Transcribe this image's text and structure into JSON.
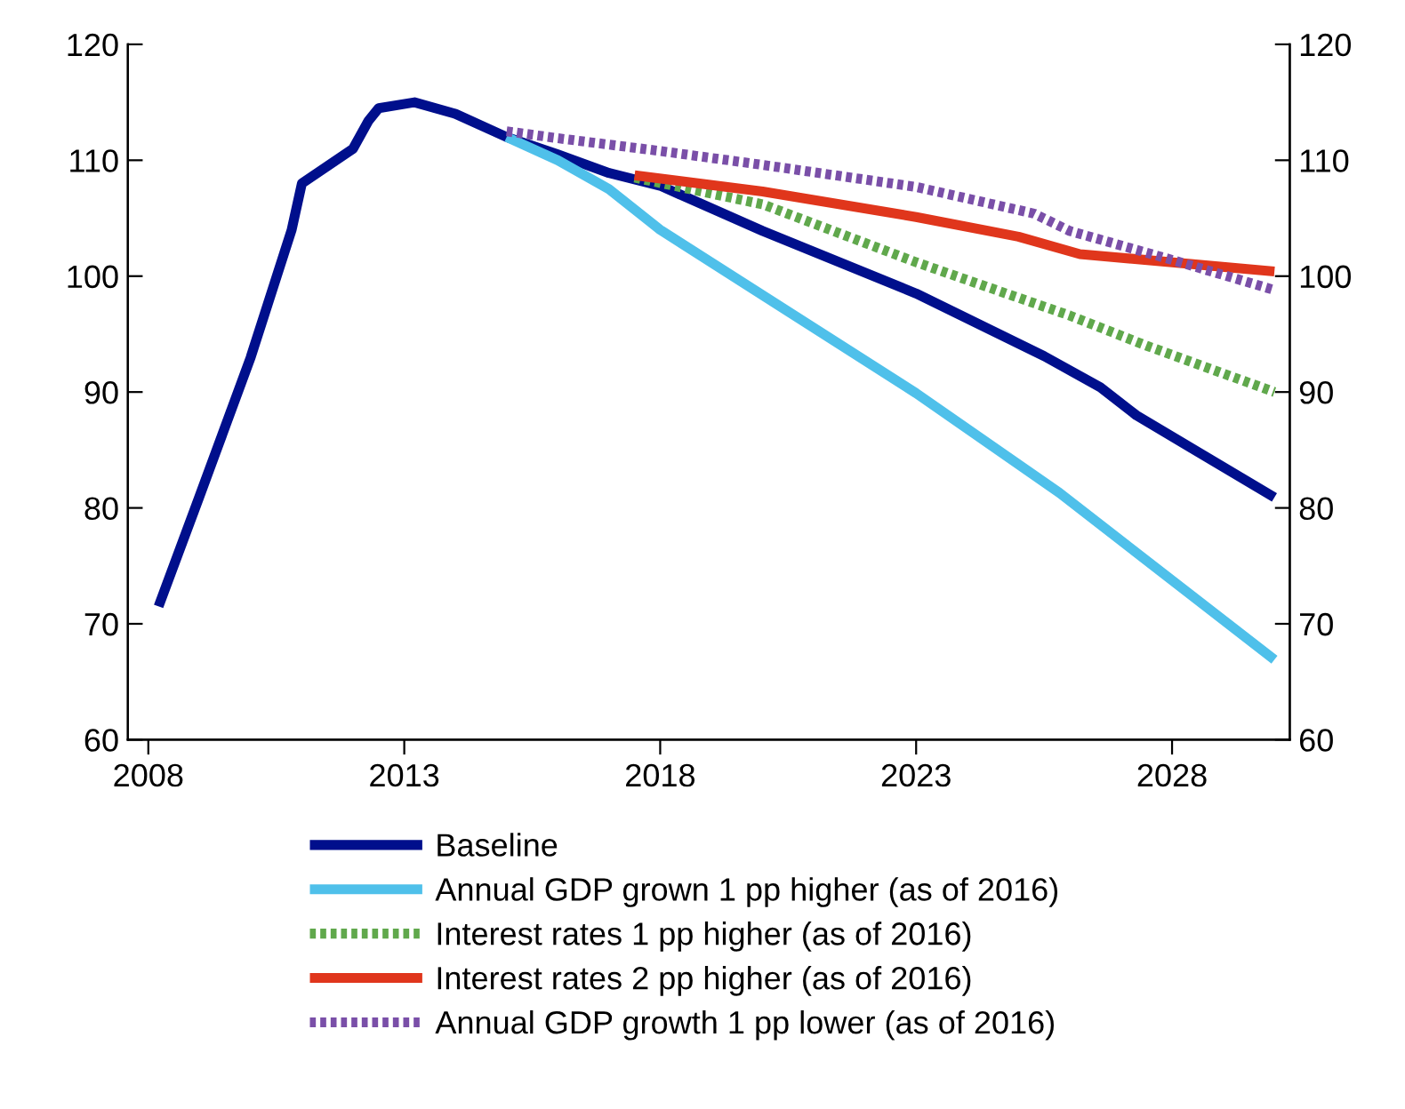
{
  "chart_data": {
    "type": "line",
    "xlim": [
      2007.6,
      2030.3
    ],
    "xticks": [
      2008,
      2013,
      2018,
      2023,
      2028
    ],
    "ylim": [
      60,
      120
    ],
    "yticks": [
      60,
      70,
      80,
      90,
      100,
      110,
      120
    ],
    "y2lim": [
      60,
      120
    ],
    "y2ticks": [
      60,
      70,
      80,
      90,
      100,
      110,
      120
    ],
    "grid": false,
    "legend": "bottom",
    "marker": "none",
    "series": [
      {
        "name": "Baseline",
        "color": "#000f8c",
        "line_style": "solid",
        "x": [
          2008.2,
          2009,
          2010,
          2010.8,
          2011,
          2011.5,
          2012,
          2012.3,
          2012.5,
          2013.2,
          2014,
          2015,
          2016,
          2017,
          2018,
          2020,
          2023,
          2025.5,
          2026.6,
          2027.3,
          2030
        ],
        "values": [
          71.5,
          81,
          93,
          104,
          108,
          109.5,
          111,
          113.4,
          114.5,
          115,
          114,
          112,
          110.5,
          108.9,
          107.8,
          103.9,
          98.5,
          93.1,
          90.4,
          88,
          80.9
        ]
      },
      {
        "name": "Annual GDP grown 1 pp higher (as of 2016)",
        "color": "#4fc0ea",
        "line_style": "solid",
        "x": [
          2015,
          2016,
          2017,
          2018,
          2023,
          2025.8,
          2030
        ],
        "values": [
          112,
          110,
          107.5,
          104,
          89.9,
          81.3,
          66.9
        ]
      },
      {
        "name": "Interest rates 1 pp higher (as of 2016)",
        "color": "#60a84c",
        "line_style": "dotted",
        "x": [
          2017.5,
          2020,
          2023,
          2026,
          2027.5,
          2030
        ],
        "values": [
          108.5,
          106.2,
          101.2,
          96.6,
          94,
          90
        ]
      },
      {
        "name": "Interest rates 2 pp higher (as of 2016)",
        "color": "#e0361c",
        "line_style": "solid",
        "x": [
          2017.5,
          2020,
          2023,
          2025,
          2026.2,
          2030
        ],
        "values": [
          108.7,
          107.3,
          105.1,
          103.4,
          101.9,
          100.4
        ]
      },
      {
        "name": "Annual GDP growth 1 pp lower (as of 2016)",
        "color": "#7a4fa8",
        "line_style": "dotted",
        "x": [
          2015,
          2016,
          2018,
          2020,
          2023,
          2025.3,
          2026,
          2028,
          2030
        ],
        "values": [
          112.5,
          111.9,
          110.8,
          109.6,
          107.7,
          105.4,
          103.9,
          101.4,
          98.8
        ]
      }
    ]
  }
}
